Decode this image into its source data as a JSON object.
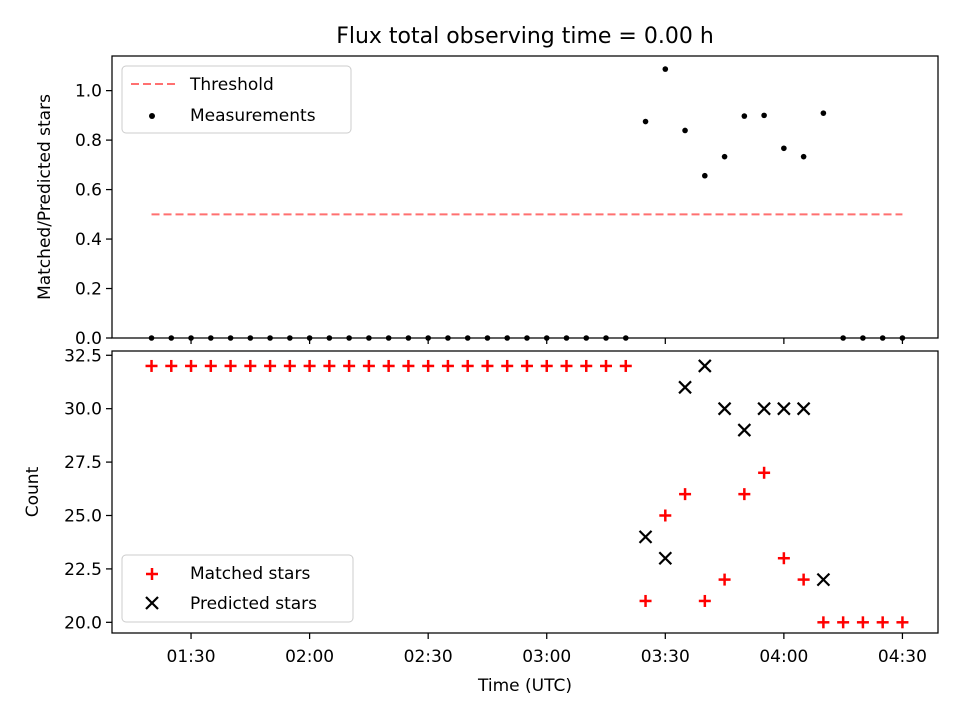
{
  "figure": {
    "title": "Flux total observing time = 0.00 h"
  },
  "chart_data": [
    {
      "type": "scatter",
      "panel": "top",
      "title": "Flux total observing time = 0.00 h",
      "xlabel": "",
      "ylabel": "Matched/Predicted stars",
      "xlim": [
        "01:10",
        "04:39"
      ],
      "ylim": [
        0,
        1.14
      ],
      "yticks": [
        0.0,
        0.2,
        0.4,
        0.6,
        0.8,
        1.0
      ],
      "ytick_labels": [
        "0.0",
        "0.2",
        "0.4",
        "0.6",
        "0.8",
        "1.0"
      ],
      "xticks": [
        "01:30",
        "02:00",
        "02:30",
        "03:00",
        "03:30",
        "04:00",
        "04:30"
      ],
      "legend_position": "upper-left",
      "grid": false,
      "threshold": {
        "name": "Threshold",
        "value": 0.5,
        "x_range": [
          "01:20",
          "04:30"
        ],
        "color": "#ff7070",
        "style": "dashed"
      },
      "series": [
        {
          "name": "Measurements",
          "marker": "dot",
          "color": "#000000",
          "points": [
            [
              "01:20",
              0
            ],
            [
              "01:25",
              0
            ],
            [
              "01:30",
              0
            ],
            [
              "01:35",
              0
            ],
            [
              "01:40",
              0
            ],
            [
              "01:45",
              0
            ],
            [
              "01:50",
              0
            ],
            [
              "01:55",
              0
            ],
            [
              "02:00",
              0
            ],
            [
              "02:05",
              0
            ],
            [
              "02:10",
              0
            ],
            [
              "02:15",
              0
            ],
            [
              "02:20",
              0
            ],
            [
              "02:25",
              0
            ],
            [
              "02:30",
              0
            ],
            [
              "02:35",
              0
            ],
            [
              "02:40",
              0
            ],
            [
              "02:45",
              0
            ],
            [
              "02:50",
              0
            ],
            [
              "02:55",
              0
            ],
            [
              "03:00",
              0
            ],
            [
              "03:05",
              0
            ],
            [
              "03:10",
              0
            ],
            [
              "03:15",
              0
            ],
            [
              "03:20",
              0
            ],
            [
              "03:25",
              0.875
            ],
            [
              "03:30",
              1.087
            ],
            [
              "03:35",
              0.839
            ],
            [
              "03:40",
              0.656
            ],
            [
              "03:45",
              0.733
            ],
            [
              "03:50",
              0.897
            ],
            [
              "03:55",
              0.9
            ],
            [
              "04:00",
              0.767
            ],
            [
              "04:05",
              0.733
            ],
            [
              "04:10",
              0.909
            ],
            [
              "04:15",
              0
            ],
            [
              "04:20",
              0
            ],
            [
              "04:25",
              0
            ],
            [
              "04:30",
              0
            ]
          ]
        }
      ]
    },
    {
      "type": "scatter",
      "panel": "bottom",
      "xlabel": "Time (UTC)",
      "ylabel": "Count",
      "xlim": [
        "01:10",
        "04:39"
      ],
      "ylim": [
        19.5,
        32.7
      ],
      "yticks": [
        20.0,
        22.5,
        25.0,
        27.5,
        30.0,
        32.5
      ],
      "ytick_labels": [
        "20.0",
        "22.5",
        "25.0",
        "27.5",
        "30.0",
        "32.5"
      ],
      "xticks": [
        "01:30",
        "02:00",
        "02:30",
        "03:00",
        "03:30",
        "04:00",
        "04:30"
      ],
      "xtick_labels": [
        "01:30",
        "02:00",
        "02:30",
        "03:00",
        "03:30",
        "04:00",
        "04:30"
      ],
      "legend_position": "lower-left",
      "grid": false,
      "series": [
        {
          "name": "Matched stars",
          "marker": "plus",
          "color": "#ff0000",
          "points": [
            [
              "01:20",
              32
            ],
            [
              "01:25",
              32
            ],
            [
              "01:30",
              32
            ],
            [
              "01:35",
              32
            ],
            [
              "01:40",
              32
            ],
            [
              "01:45",
              32
            ],
            [
              "01:50",
              32
            ],
            [
              "01:55",
              32
            ],
            [
              "02:00",
              32
            ],
            [
              "02:05",
              32
            ],
            [
              "02:10",
              32
            ],
            [
              "02:15",
              32
            ],
            [
              "02:20",
              32
            ],
            [
              "02:25",
              32
            ],
            [
              "02:30",
              32
            ],
            [
              "02:35",
              32
            ],
            [
              "02:40",
              32
            ],
            [
              "02:45",
              32
            ],
            [
              "02:50",
              32
            ],
            [
              "02:55",
              32
            ],
            [
              "03:00",
              32
            ],
            [
              "03:05",
              32
            ],
            [
              "03:10",
              32
            ],
            [
              "03:15",
              32
            ],
            [
              "03:20",
              32
            ],
            [
              "03:25",
              21
            ],
            [
              "03:30",
              25
            ],
            [
              "03:35",
              26
            ],
            [
              "03:40",
              21
            ],
            [
              "03:45",
              22
            ],
            [
              "03:50",
              26
            ],
            [
              "03:55",
              27
            ],
            [
              "04:00",
              23
            ],
            [
              "04:05",
              22
            ],
            [
              "04:10",
              20
            ],
            [
              "04:15",
              20
            ],
            [
              "04:20",
              20
            ],
            [
              "04:25",
              20
            ],
            [
              "04:30",
              20
            ]
          ]
        },
        {
          "name": "Predicted stars",
          "marker": "x",
          "color": "#000000",
          "points": [
            [
              "03:25",
              24
            ],
            [
              "03:30",
              23
            ],
            [
              "03:35",
              31
            ],
            [
              "03:40",
              32
            ],
            [
              "03:45",
              30
            ],
            [
              "03:50",
              29
            ],
            [
              "03:55",
              30
            ],
            [
              "04:00",
              30
            ],
            [
              "04:05",
              30
            ],
            [
              "04:10",
              22
            ]
          ]
        }
      ]
    }
  ]
}
